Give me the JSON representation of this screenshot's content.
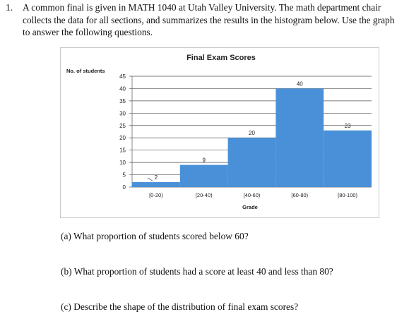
{
  "problem": {
    "number": "1.",
    "text": "A common final is given in MATH 1040 at Utah Valley University. The math department chair collects the data for all sections, and summarizes the results in the histogram below. Use the graph to answer the following questions."
  },
  "chart_data": {
    "type": "bar",
    "title": "Final Exam Scores",
    "ylabel": "No. of students",
    "xlabel": "Grade",
    "categories": [
      "[0-20)",
      "[20-40)",
      "[40-60)",
      "[60-80)",
      "[80-100)"
    ],
    "values": [
      2,
      9,
      20,
      40,
      23
    ],
    "data_labels": [
      "2",
      "9",
      "20",
      "40",
      "23"
    ],
    "yticks": [
      "0",
      "5",
      "10",
      "15",
      "20",
      "25",
      "30",
      "35",
      "40",
      "45"
    ],
    "ylim": [
      0,
      45
    ],
    "grid": true,
    "bar_color": "#4a90d9"
  },
  "questions": {
    "a": "(a) What proportion of students scored below 60?",
    "b": "(b) What proportion of students had a score at least 40 and less than 80?",
    "c": "(c) Describe the shape of the distribution of final exam scores?"
  }
}
